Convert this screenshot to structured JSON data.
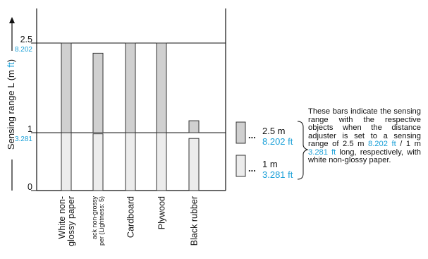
{
  "chart_data": {
    "type": "bar",
    "ylabel": "Sensing range L (m ft)",
    "ylabel_parts": {
      "text": "Sensing range L (",
      "m": "m",
      "ft": "ft",
      "close": ")"
    },
    "ylim": [
      0,
      2.5
    ],
    "y_ticks": [
      {
        "value": 0,
        "label": "0",
        "sublabel": ""
      },
      {
        "value": 1,
        "label": "1",
        "sublabel": "3.281"
      },
      {
        "value": 2.5,
        "label": "2.5",
        "sublabel": "8.202"
      }
    ],
    "categories": [
      [
        "White non-",
        "glossy paper"
      ],
      [
        "ack non-grossy",
        "per (Lightness: 5)"
      ],
      [
        "Cardboard"
      ],
      [
        "Plywood"
      ],
      [
        "Black rubber"
      ]
    ],
    "series": [
      {
        "name": "2.5 m",
        "values": [
          2.5,
          2.33,
          2.5,
          2.5,
          1.2
        ],
        "fill": "#d0d0d0"
      },
      {
        "name": "1 m",
        "values": [
          1.0,
          0.98,
          1.0,
          1.0,
          0.9
        ],
        "fill": "#ececec"
      }
    ],
    "legend": [
      {
        "dots": "...",
        "line1": "2.5 m",
        "line2": "8.202 ft",
        "fill": "#d0d0d0"
      },
      {
        "dots": "...",
        "line1": "1 m",
        "line2": "3.281 ft",
        "fill": "#ececec"
      }
    ],
    "note": {
      "p1": "These bars indicate the sensing range with the respective objects when the distance adjuster is set to a sensing range of 2.5 m ",
      "b1": "8.202 ft",
      "p2": " / 1 m ",
      "b2": "3.281 ft",
      "p3": " long, respectively, with white non-glossy paper."
    },
    "colors": {
      "ft": "#1aa0d8",
      "axis": "#111111",
      "bar_stroke": "#333333"
    }
  }
}
